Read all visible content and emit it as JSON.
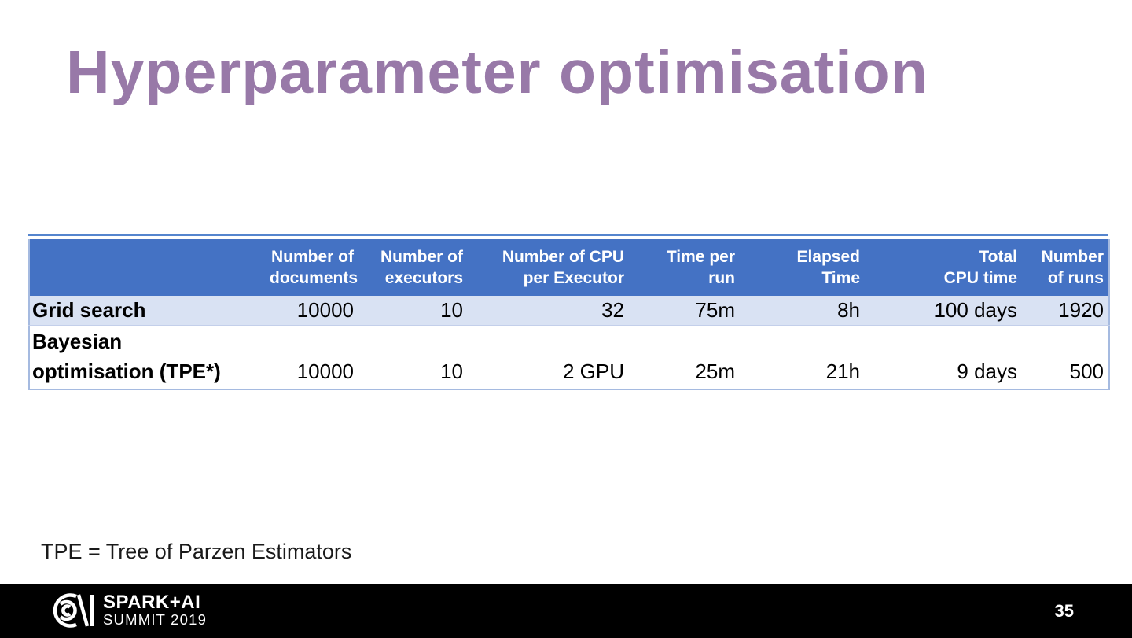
{
  "slide": {
    "title": "Hyperparameter optimisation",
    "footnote": "TPE = Tree of Parzen Estimators",
    "page_number": "35"
  },
  "footer": {
    "logo_primary": "SPARK+AI",
    "logo_secondary": "SUMMIT 2019",
    "logo_mark_icon": "spark-ai-monogram"
  },
  "chart_data": {
    "type": "table",
    "columns": [
      {
        "lines": [
          ""
        ]
      },
      {
        "lines": [
          "Number of",
          "documents"
        ]
      },
      {
        "lines": [
          "Number of",
          "executors"
        ]
      },
      {
        "lines": [
          "Number of CPU",
          "per Executor"
        ]
      },
      {
        "lines": [
          "Time per",
          "run"
        ]
      },
      {
        "lines": [
          "Elapsed",
          "Time"
        ]
      },
      {
        "lines": [
          "Total",
          "CPU time"
        ]
      },
      {
        "lines": [
          "Number",
          "of runs"
        ]
      }
    ],
    "rows": [
      {
        "label_lines": [
          "Grid search"
        ],
        "values": [
          "10000",
          "10",
          "32",
          "75m",
          "8h",
          "100 days",
          "1920"
        ],
        "banded": true
      },
      {
        "label_lines": [
          "Bayesian",
          "optimisation (TPE*)"
        ],
        "values": [
          "10000",
          "10",
          "2 GPU",
          "25m",
          "21h",
          "9 days",
          "500"
        ],
        "banded": false
      }
    ]
  },
  "colors": {
    "slide_bg": "#FFFFFF",
    "title": "#9879A8",
    "header_bg": "#4472C4",
    "header_text": "#FFFFFF",
    "row_band_bg": "#D9E2F3",
    "row_plain_bg": "#FFFFFF",
    "table_outer_border": "#A5BAE0",
    "table_top_rule": "#5585CE",
    "row_separator": "#C3CFEA",
    "body_text": "#000000",
    "footnote_text": "#1A1A1A",
    "footer_bg": "#000000",
    "footer_text": "#FFFFFF"
  }
}
